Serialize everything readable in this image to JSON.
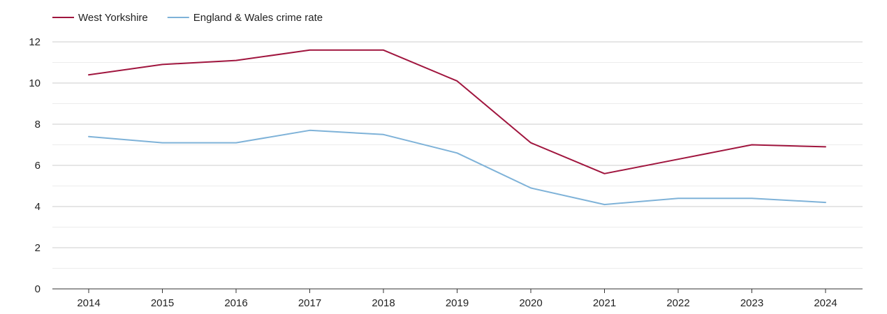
{
  "chart_data": {
    "type": "line",
    "x": [
      "2014",
      "2015",
      "2016",
      "2017",
      "2018",
      "2019",
      "2020",
      "2021",
      "2022",
      "2023",
      "2024"
    ],
    "series": [
      {
        "name": "West Yorkshire",
        "color": "#a0153e",
        "values": [
          10.4,
          10.9,
          11.1,
          11.6,
          11.6,
          10.1,
          7.1,
          5.6,
          6.3,
          7.0,
          6.9
        ]
      },
      {
        "name": "England & Wales crime rate",
        "color": "#7eb2d8",
        "values": [
          7.4,
          7.1,
          7.1,
          7.7,
          7.5,
          6.6,
          4.9,
          4.1,
          4.4,
          4.4,
          4.2
        ]
      }
    ],
    "ylim": [
      0,
      12
    ],
    "yticks": [
      "0",
      "2",
      "4",
      "6",
      "8",
      "10",
      "12"
    ],
    "grid": true,
    "legend_position": "top-left",
    "title": "",
    "xlabel": "",
    "ylabel": ""
  }
}
